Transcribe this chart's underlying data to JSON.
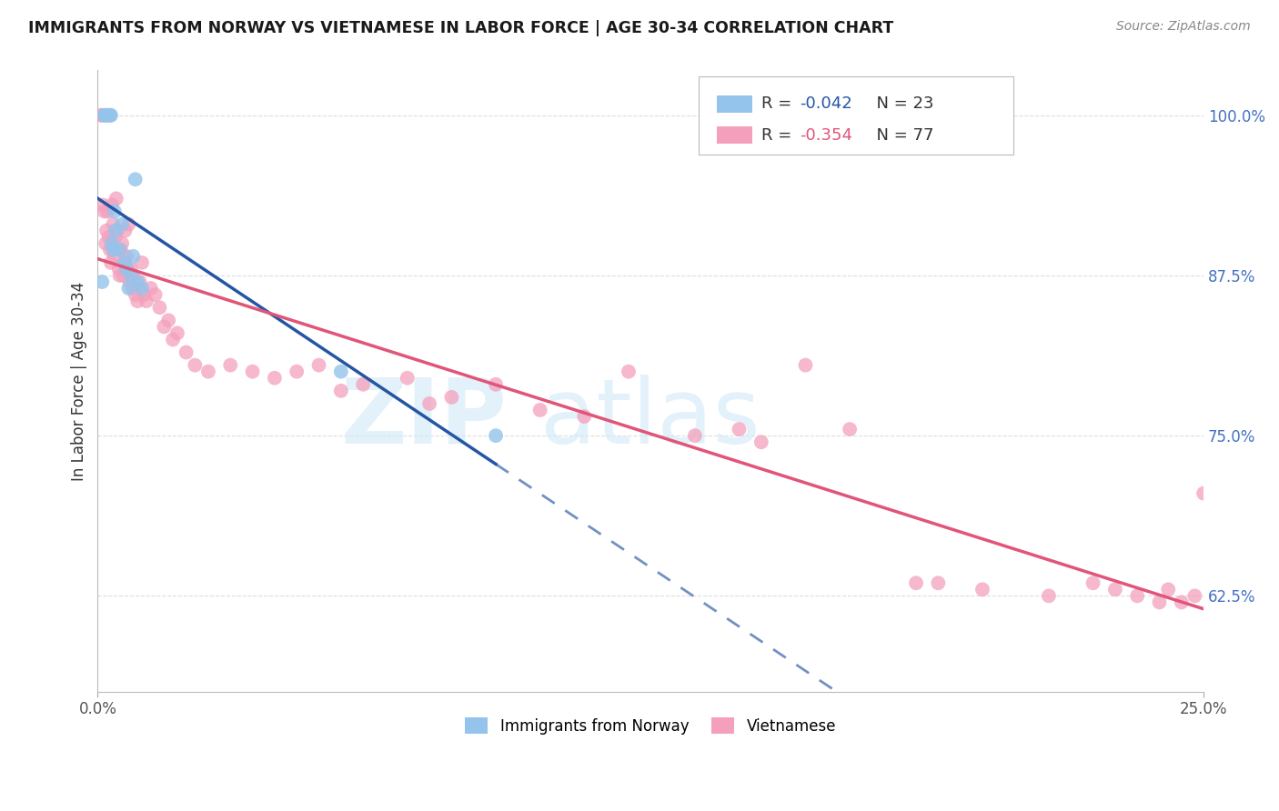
{
  "title": "IMMIGRANTS FROM NORWAY VS VIETNAMESE IN LABOR FORCE | AGE 30-34 CORRELATION CHART",
  "source": "Source: ZipAtlas.com",
  "ylabel": "In Labor Force | Age 30-34",
  "xlim": [
    0.0,
    25.0
  ],
  "ylim": [
    55.0,
    103.5
  ],
  "yticks": [
    62.5,
    75.0,
    87.5,
    100.0
  ],
  "ytick_labels": [
    "62.5%",
    "75.0%",
    "87.5%",
    "100.0%"
  ],
  "xtick_left": "0.0%",
  "xtick_right": "25.0%",
  "norway_R": -0.042,
  "norway_N": 23,
  "viet_R": -0.354,
  "viet_N": 77,
  "norway_color": "#94C4EC",
  "viet_color": "#F4A0BC",
  "norway_line_color": "#2456A4",
  "viet_line_color": "#E05578",
  "norway_x": [
    0.1,
    0.15,
    0.18,
    0.2,
    0.25,
    0.28,
    0.3,
    0.32,
    0.35,
    0.38,
    0.4,
    0.5,
    0.55,
    0.6,
    0.65,
    0.7,
    0.75,
    0.8,
    0.85,
    0.9,
    1.0,
    5.5,
    9.0
  ],
  "norway_y": [
    87.0,
    100.0,
    100.0,
    100.0,
    100.0,
    100.0,
    100.0,
    90.0,
    89.5,
    92.5,
    91.0,
    89.5,
    91.5,
    88.5,
    88.0,
    86.5,
    87.5,
    89.0,
    95.0,
    87.0,
    86.5,
    80.0,
    75.0
  ],
  "viet_x": [
    0.08,
    0.1,
    0.12,
    0.15,
    0.18,
    0.2,
    0.22,
    0.25,
    0.28,
    0.3,
    0.32,
    0.35,
    0.38,
    0.4,
    0.42,
    0.45,
    0.48,
    0.5,
    0.52,
    0.55,
    0.58,
    0.6,
    0.62,
    0.65,
    0.68,
    0.7,
    0.72,
    0.75,
    0.78,
    0.8,
    0.85,
    0.9,
    0.95,
    1.0,
    1.05,
    1.1,
    1.2,
    1.3,
    1.4,
    1.5,
    1.6,
    1.7,
    1.8,
    2.0,
    2.2,
    2.5,
    3.0,
    3.5,
    4.0,
    4.5,
    5.0,
    5.5,
    6.0,
    7.0,
    7.5,
    8.0,
    9.0,
    10.0,
    11.0,
    12.0,
    13.5,
    14.5,
    15.0,
    16.0,
    17.0,
    18.5,
    19.0,
    20.0,
    21.5,
    22.5,
    23.0,
    23.5,
    24.0,
    24.2,
    24.5,
    24.8,
    25.0
  ],
  "viet_y": [
    100.0,
    100.0,
    93.0,
    92.5,
    90.0,
    91.0,
    92.5,
    90.5,
    89.5,
    88.5,
    93.0,
    91.5,
    89.0,
    90.5,
    93.5,
    91.0,
    88.0,
    87.5,
    89.5,
    90.0,
    87.5,
    88.5,
    91.0,
    89.0,
    88.0,
    91.5,
    87.0,
    88.0,
    86.5,
    87.5,
    86.0,
    85.5,
    87.0,
    88.5,
    86.0,
    85.5,
    86.5,
    86.0,
    85.0,
    83.5,
    84.0,
    82.5,
    83.0,
    81.5,
    80.5,
    80.0,
    80.5,
    80.0,
    79.5,
    80.0,
    80.5,
    78.5,
    79.0,
    79.5,
    77.5,
    78.0,
    79.0,
    77.0,
    76.5,
    80.0,
    75.0,
    75.5,
    74.5,
    80.5,
    75.5,
    63.5,
    63.5,
    63.0,
    62.5,
    63.5,
    63.0,
    62.5,
    62.0,
    63.0,
    62.0,
    62.5,
    70.5
  ],
  "norway_line_start_x": 0.0,
  "norway_line_solid_end_x": 9.0,
  "norway_line_dash_end_x": 25.0,
  "viet_line_start_x": 0.0,
  "viet_line_end_x": 25.0
}
